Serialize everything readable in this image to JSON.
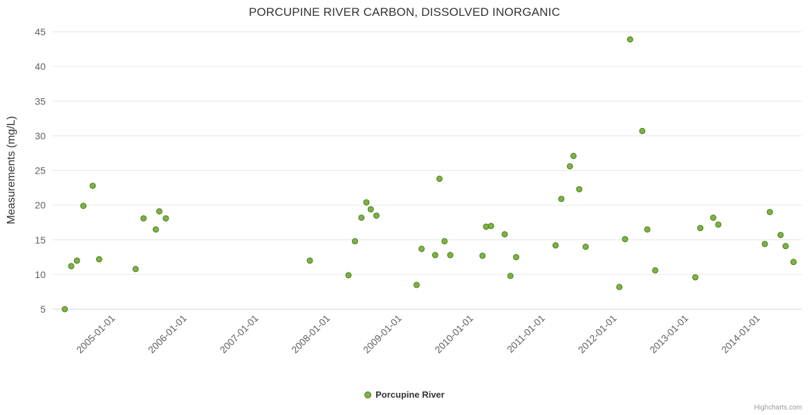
{
  "title": "PORCUPINE RIVER CARBON, DISSOLVED INORGANIC",
  "y_axis_title": "Measurements (mg/L)",
  "legend": {
    "series_label": "Porcupine River"
  },
  "credits": "Highcharts.com",
  "colors": {
    "point_fill": "#7cb342",
    "point_stroke": "#4e7c20",
    "grid": "#e6e6e6",
    "axis_line": "#ccd6eb",
    "tick_text": "#606060",
    "title_text": "#333333"
  },
  "chart_data": {
    "type": "scatter",
    "title": "PORCUPINE RIVER CARBON, DISSOLVED INORGANIC",
    "xlabel": "",
    "ylabel": "Measurements (mg/L)",
    "ylim": [
      5,
      45
    ],
    "yticks": [
      5,
      10,
      15,
      20,
      25,
      30,
      35,
      40,
      45
    ],
    "xlim": [
      2004.15,
      2014.62
    ],
    "xticks": [
      2005,
      2006,
      2007,
      2008,
      2009,
      2010,
      2011,
      2012,
      2013,
      2014
    ],
    "xtick_labels": [
      "2005-01-01",
      "2006-01-01",
      "2007-01-01",
      "2008-01-01",
      "2009-01-01",
      "2010-01-01",
      "2011-01-01",
      "2012-01-01",
      "2013-01-01",
      "2014-01-01"
    ],
    "grid": "horizontal",
    "legend_position": "bottom-center",
    "series": [
      {
        "name": "Porcupine River",
        "points": [
          [
            2004.33,
            5.0
          ],
          [
            2004.42,
            11.2
          ],
          [
            2004.5,
            12.0
          ],
          [
            2004.59,
            19.9
          ],
          [
            2004.72,
            22.8
          ],
          [
            2004.81,
            12.2
          ],
          [
            2005.32,
            10.8
          ],
          [
            2005.43,
            18.1
          ],
          [
            2005.6,
            16.5
          ],
          [
            2005.65,
            19.1
          ],
          [
            2005.74,
            18.1
          ],
          [
            2007.75,
            12.0
          ],
          [
            2008.29,
            9.9
          ],
          [
            2008.38,
            14.8
          ],
          [
            2008.47,
            18.2
          ],
          [
            2008.54,
            20.4
          ],
          [
            2008.6,
            19.4
          ],
          [
            2008.68,
            18.5
          ],
          [
            2009.24,
            8.5
          ],
          [
            2009.31,
            13.7
          ],
          [
            2009.5,
            12.8
          ],
          [
            2009.56,
            23.8
          ],
          [
            2009.63,
            14.8
          ],
          [
            2009.71,
            12.8
          ],
          [
            2010.16,
            12.7
          ],
          [
            2010.21,
            16.9
          ],
          [
            2010.28,
            17.0
          ],
          [
            2010.47,
            15.8
          ],
          [
            2010.55,
            9.8
          ],
          [
            2010.63,
            12.5
          ],
          [
            2011.18,
            14.2
          ],
          [
            2011.26,
            20.9
          ],
          [
            2011.38,
            25.6
          ],
          [
            2011.43,
            27.1
          ],
          [
            2011.51,
            22.3
          ],
          [
            2011.6,
            14.0
          ],
          [
            2012.07,
            8.2
          ],
          [
            2012.15,
            15.1
          ],
          [
            2012.22,
            43.9
          ],
          [
            2012.39,
            30.7
          ],
          [
            2012.46,
            16.5
          ],
          [
            2012.57,
            10.6
          ],
          [
            2013.13,
            9.6
          ],
          [
            2013.2,
            16.7
          ],
          [
            2013.38,
            18.2
          ],
          [
            2013.45,
            17.2
          ],
          [
            2014.1,
            14.4
          ],
          [
            2014.17,
            19.0
          ],
          [
            2014.32,
            15.7
          ],
          [
            2014.39,
            14.1
          ],
          [
            2014.5,
            11.8
          ]
        ]
      }
    ]
  }
}
